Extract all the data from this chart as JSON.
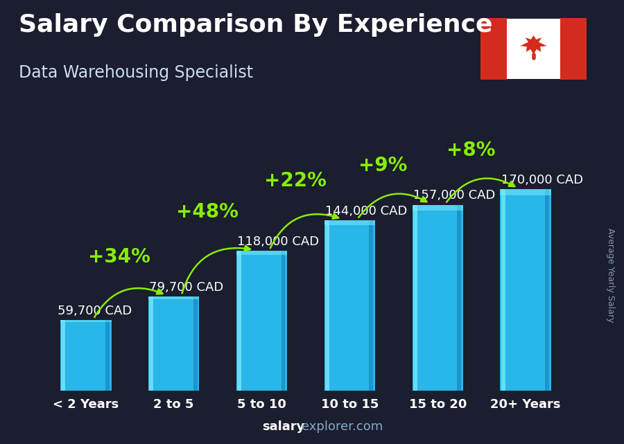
{
  "title": "Salary Comparison By Experience",
  "subtitle": "Data Warehousing Specialist",
  "categories": [
    "< 2 Years",
    "2 to 5",
    "5 to 10",
    "10 to 15",
    "15 to 20",
    "20+ Years"
  ],
  "values": [
    59700,
    79700,
    118000,
    144000,
    157000,
    170000
  ],
  "value_labels": [
    "59,700 CAD",
    "79,700 CAD",
    "118,000 CAD",
    "144,000 CAD",
    "157,000 CAD",
    "170,000 CAD"
  ],
  "pct_changes": [
    "+34%",
    "+48%",
    "+22%",
    "+9%",
    "+8%"
  ],
  "bar_color_main": "#29b6e8",
  "bar_color_light": "#5dd8f8",
  "bar_color_dark": "#1a8ccc",
  "bar_color_highlight": "#80eeff",
  "bg_color": "#1a1e2e",
  "text_white": "#ffffff",
  "text_green": "#88ee00",
  "text_light": "#c8dde8",
  "text_footer_bold": "#ffffff",
  "text_footer_normal": "#88aacc",
  "ylabel": "Average Yearly Salary",
  "footer_bold": "salary",
  "footer_normal": "explorer.com",
  "ylim": [
    0,
    195000
  ],
  "title_fontsize": 26,
  "subtitle_fontsize": 17,
  "pct_fontsize": 20,
  "value_fontsize": 13,
  "cat_fontsize": 13
}
